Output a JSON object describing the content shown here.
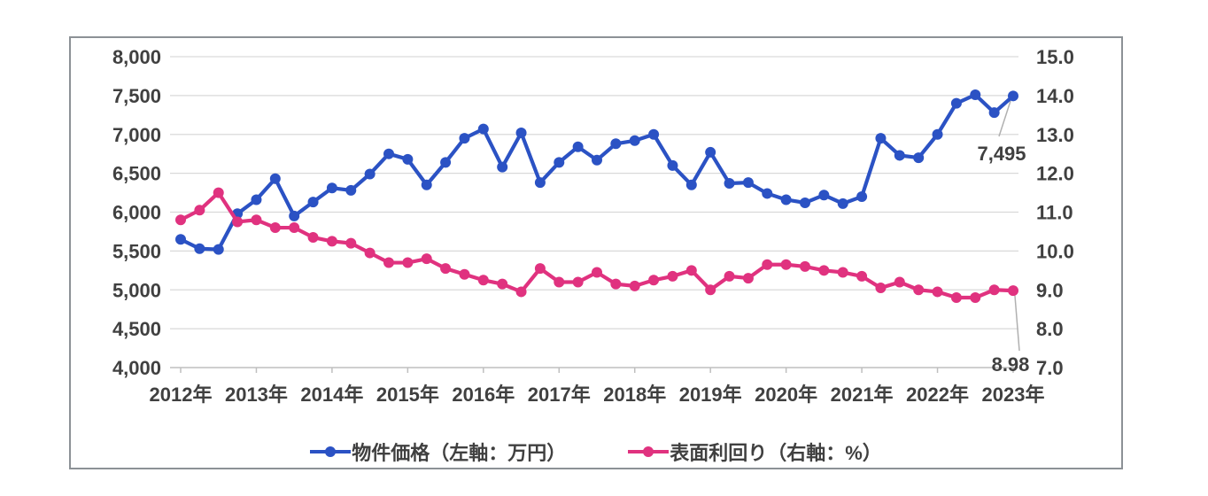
{
  "chart_data": {
    "type": "line",
    "title": "",
    "x": [
      "2012Q1",
      "2012Q2",
      "2012Q3",
      "2012Q4",
      "2013Q1",
      "2013Q2",
      "2013Q3",
      "2013Q4",
      "2014Q1",
      "2014Q2",
      "2014Q3",
      "2014Q4",
      "2015Q1",
      "2015Q2",
      "2015Q3",
      "2015Q4",
      "2016Q1",
      "2016Q2",
      "2016Q3",
      "2016Q4",
      "2017Q1",
      "2017Q2",
      "2017Q3",
      "2017Q4",
      "2018Q1",
      "2018Q2",
      "2018Q3",
      "2018Q4",
      "2019Q1",
      "2019Q2",
      "2019Q3",
      "2019Q4",
      "2020Q1",
      "2020Q2",
      "2020Q3",
      "2020Q4",
      "2021Q1",
      "2021Q2",
      "2021Q3",
      "2021Q4",
      "2022Q1",
      "2022Q2",
      "2022Q3",
      "2022Q4",
      "2023Q1"
    ],
    "x_axis": {
      "year_labels": [
        "2012年",
        "2013年",
        "2014年",
        "2015年",
        "2016年",
        "2017年",
        "2018年",
        "2019年",
        "2020年",
        "2021年",
        "2022年",
        "2023年"
      ],
      "points_per_year": 4
    },
    "series": [
      {
        "name": "物件価格（左軸：万円）",
        "axis": "left",
        "color": "#2b52c4",
        "values": [
          5650,
          5530,
          5520,
          5980,
          6160,
          6430,
          5950,
          6130,
          6310,
          6280,
          6490,
          6750,
          6680,
          6350,
          6640,
          6950,
          7070,
          6580,
          7020,
          6380,
          6640,
          6840,
          6670,
          6880,
          6920,
          7000,
          6600,
          6350,
          6770,
          6370,
          6380,
          6240,
          6160,
          6120,
          6220,
          6110,
          6200,
          6950,
          6730,
          6700,
          7000,
          7400,
          7510,
          7280,
          7495
        ]
      },
      {
        "name": "表面利回り（右軸：%）",
        "axis": "right",
        "color": "#e0327f",
        "values": [
          10.8,
          11.05,
          11.5,
          10.75,
          10.8,
          10.6,
          10.6,
          10.35,
          10.25,
          10.2,
          9.95,
          9.7,
          9.7,
          9.8,
          9.55,
          9.4,
          9.25,
          9.15,
          8.95,
          9.55,
          9.2,
          9.2,
          9.45,
          9.15,
          9.1,
          9.25,
          9.35,
          9.5,
          9.0,
          9.35,
          9.3,
          9.65,
          9.65,
          9.6,
          9.5,
          9.45,
          9.35,
          9.05,
          9.2,
          9.0,
          8.95,
          8.8,
          8.8,
          9.0,
          8.98
        ]
      }
    ],
    "left_axis": {
      "min": 4000,
      "max": 8000,
      "step": 500,
      "labels": [
        "8,000",
        "7,500",
        "7,000",
        "6,500",
        "6,000",
        "5,500",
        "5,000",
        "4,500",
        "4,000"
      ]
    },
    "right_axis": {
      "min": 7.0,
      "max": 15.0,
      "step": 1.0,
      "labels": [
        "15.0",
        "14.0",
        "13.0",
        "12.0",
        "11.0",
        "10.0",
        "9.0",
        "8.0",
        "7.0"
      ]
    },
    "annotations": [
      {
        "text": "7,495",
        "series": "物件価格（左軸：万円）",
        "point_index": 44
      },
      {
        "text": "8.98",
        "series": "表面利回り（右軸：%）",
        "point_index": 44
      }
    ],
    "grid": true,
    "legend_position": "bottom"
  },
  "style": {
    "grid_color": "#d9d9d9",
    "axis_color": "#bfbfbf",
    "tick_color": "#bfbfbf",
    "leader_color": "#b0b0b0",
    "text_color": "#404040",
    "border_color": "#8c9196",
    "background": "#ffffff"
  }
}
